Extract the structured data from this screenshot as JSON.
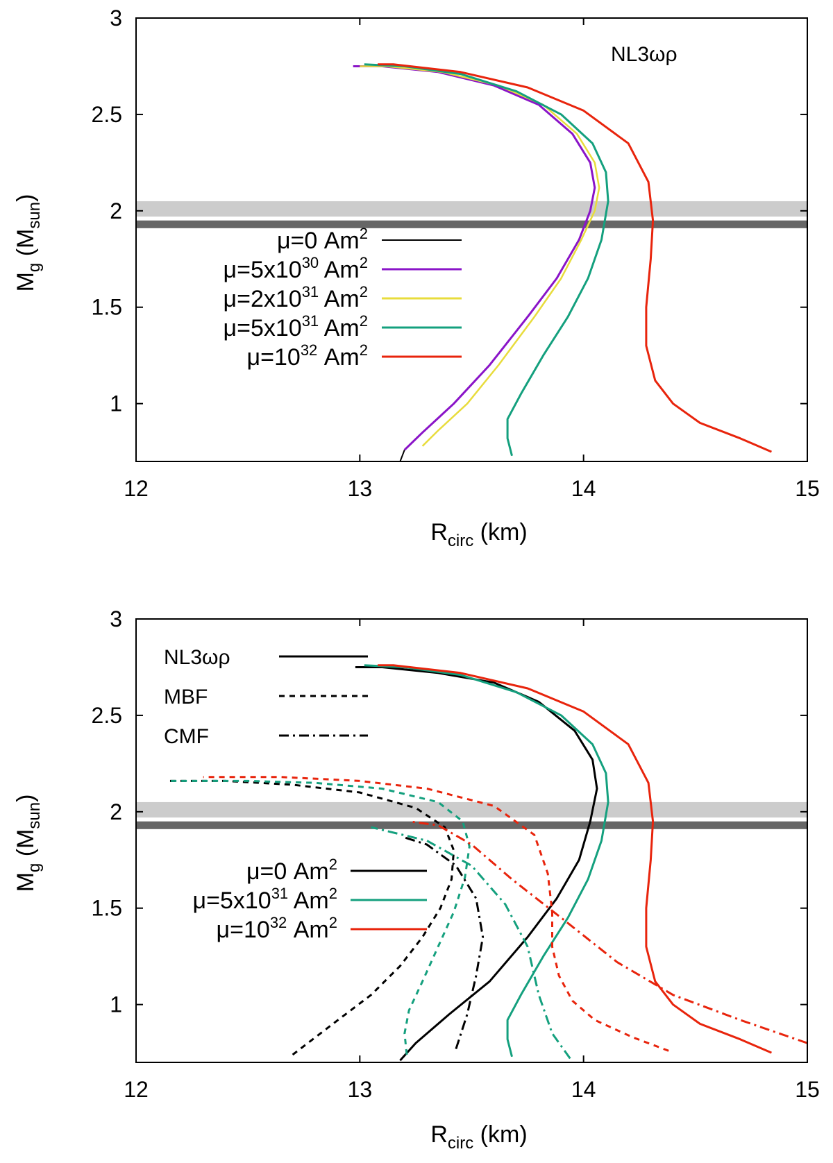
{
  "chart_data": [
    {
      "type": "line",
      "panel": "top",
      "title": "",
      "xlabel_main": "R",
      "xlabel_sub": "circ",
      "xlabel_tail": " (km)",
      "ylabel_main": "M",
      "ylabel_sub": "g",
      "ylabel_tail": " (M",
      "ylabel_sub2": "sun",
      "ylabel_end": ")",
      "xlim": [
        12,
        15
      ],
      "ylim": [
        0.7,
        3
      ],
      "xticks": [
        "12",
        "13",
        "14",
        "15"
      ],
      "yticks": [
        "1",
        "1.5",
        "2",
        "2.5",
        "3"
      ],
      "grid": false,
      "annotation": "NL3ωρ",
      "bands": [
        {
          "y": [
            1.97,
            2.05
          ],
          "color": "#cccccc"
        },
        {
          "y": [
            1.91,
            1.95
          ],
          "color": "#666666"
        }
      ],
      "legend": [
        {
          "text": "μ=0 Am",
          "sup": "2",
          "suffix": "",
          "color": "#000000",
          "dash": "solid"
        },
        {
          "text": "μ=5x10",
          "sup": "30",
          "suffix": " Am²",
          "color": "#8a14c8",
          "dash": "solid"
        },
        {
          "text": "μ=2x10",
          "sup": "31",
          "suffix": " Am²",
          "color": "#e8dc3c",
          "dash": "solid"
        },
        {
          "text": "μ=5x10",
          "sup": "31",
          "suffix": " Am²",
          "color": "#14a07e",
          "dash": "solid"
        },
        {
          "text": "μ=10",
          "sup": "32",
          "suffix": " Am²",
          "color": "#e8240c",
          "dash": "solid"
        }
      ],
      "series": [
        {
          "name": "μ=0 Am²",
          "color": "#000000",
          "width": 2,
          "dash": "solid",
          "x": [
            13.18,
            13.2
          ],
          "y": [
            0.7,
            0.76
          ]
        },
        {
          "name": "μ=5x10^30 Am²",
          "color": "#8a14c8",
          "width": 3,
          "dash": "solid",
          "x": [
            13.2,
            13.28,
            13.42,
            13.58,
            13.75,
            13.88,
            13.98,
            14.03,
            14.05,
            14.03,
            13.95,
            13.8,
            13.6,
            13.35,
            13.1,
            12.97
          ],
          "y": [
            0.76,
            0.85,
            1.0,
            1.2,
            1.45,
            1.65,
            1.85,
            2.0,
            2.12,
            2.25,
            2.4,
            2.55,
            2.65,
            2.72,
            2.75,
            2.75
          ]
        },
        {
          "name": "μ=2x10^31 Am²",
          "color": "#e8dc3c",
          "width": 2.5,
          "dash": "solid",
          "x": [
            13.28,
            13.35,
            13.48,
            13.62,
            13.78,
            13.9,
            13.99,
            14.05,
            14.07,
            14.05,
            13.97,
            13.82,
            13.62,
            13.37,
            13.12,
            13.0
          ],
          "y": [
            0.78,
            0.86,
            1.0,
            1.2,
            1.45,
            1.65,
            1.85,
            2.0,
            2.12,
            2.25,
            2.4,
            2.55,
            2.65,
            2.72,
            2.75,
            2.75
          ]
        },
        {
          "name": "μ=5x10^31 Am²",
          "color": "#14a07e",
          "width": 3,
          "dash": "solid",
          "x": [
            13.68,
            13.66,
            13.66,
            13.72,
            13.82,
            13.93,
            14.02,
            14.08,
            14.11,
            14.1,
            14.04,
            13.9,
            13.7,
            13.45,
            13.2,
            13.02
          ],
          "y": [
            0.73,
            0.82,
            0.92,
            1.05,
            1.25,
            1.45,
            1.65,
            1.85,
            2.05,
            2.2,
            2.35,
            2.5,
            2.62,
            2.71,
            2.75,
            2.76
          ]
        },
        {
          "name": "μ=10^32 Am²",
          "color": "#e8240c",
          "width": 3,
          "dash": "solid",
          "x": [
            14.84,
            14.7,
            14.52,
            14.4,
            14.32,
            14.28,
            14.28,
            14.3,
            14.31,
            14.29,
            14.2,
            14.0,
            13.75,
            13.45,
            13.15,
            13.08
          ],
          "y": [
            0.75,
            0.82,
            0.9,
            1.0,
            1.12,
            1.3,
            1.5,
            1.75,
            1.95,
            2.15,
            2.35,
            2.52,
            2.64,
            2.72,
            2.76,
            2.76
          ]
        }
      ]
    },
    {
      "type": "line",
      "panel": "bottom",
      "title": "",
      "xlabel_main": "R",
      "xlabel_sub": "circ",
      "xlabel_tail": " (km)",
      "ylabel_main": "M",
      "ylabel_sub": "g",
      "ylabel_tail": " (M",
      "ylabel_sub2": "sun",
      "ylabel_end": ")",
      "xlim": [
        12,
        15
      ],
      "ylim": [
        0.7,
        3
      ],
      "xticks": [
        "12",
        "13",
        "14",
        "15"
      ],
      "yticks": [
        "1",
        "1.5",
        "2",
        "2.5",
        "3"
      ],
      "grid": false,
      "bands": [
        {
          "y": [
            1.97,
            2.05
          ],
          "color": "#cccccc"
        },
        {
          "y": [
            1.91,
            1.95
          ],
          "color": "#666666"
        }
      ],
      "legend_styles": [
        {
          "text": "NL3ωρ",
          "color": "#000000",
          "dash": "solid"
        },
        {
          "text": "MBF",
          "color": "#000000",
          "dash": "dashed"
        },
        {
          "text": "CMF",
          "color": "#000000",
          "dash": "dashdot"
        }
      ],
      "legend": [
        {
          "text": "μ=0 Am",
          "sup": "2",
          "suffix": "",
          "color": "#000000",
          "dash": "solid"
        },
        {
          "text": "μ=5x10",
          "sup": "31",
          "suffix": " Am²",
          "color": "#14a07e",
          "dash": "solid"
        },
        {
          "text": "μ=10",
          "sup": "32",
          "suffix": " Am²",
          "color": "#e8240c",
          "dash": "solid"
        }
      ],
      "series": [
        {
          "name": "NL3ωρ μ=0",
          "color": "#000000",
          "width": 3,
          "dash": "solid",
          "x": [
            13.18,
            13.25,
            13.4,
            13.58,
            13.75,
            13.88,
            13.98,
            14.03,
            14.06,
            14.04,
            13.96,
            13.8,
            13.6,
            13.35,
            13.1,
            12.98
          ],
          "y": [
            0.71,
            0.8,
            0.95,
            1.12,
            1.35,
            1.55,
            1.75,
            1.95,
            2.12,
            2.27,
            2.42,
            2.57,
            2.67,
            2.72,
            2.75,
            2.75
          ]
        },
        {
          "name": "NL3ωρ μ=5x10^31",
          "color": "#14a07e",
          "width": 3,
          "dash": "solid",
          "x": [
            13.68,
            13.66,
            13.66,
            13.72,
            13.82,
            13.93,
            14.02,
            14.08,
            14.11,
            14.1,
            14.04,
            13.9,
            13.7,
            13.45,
            13.2,
            13.02
          ],
          "y": [
            0.73,
            0.82,
            0.92,
            1.05,
            1.25,
            1.45,
            1.65,
            1.85,
            2.05,
            2.2,
            2.35,
            2.5,
            2.62,
            2.71,
            2.75,
            2.76
          ]
        },
        {
          "name": "NL3ωρ μ=10^32",
          "color": "#e8240c",
          "width": 3,
          "dash": "solid",
          "x": [
            14.84,
            14.7,
            14.52,
            14.4,
            14.32,
            14.28,
            14.28,
            14.3,
            14.31,
            14.29,
            14.2,
            14.0,
            13.75,
            13.45,
            13.15,
            13.08
          ],
          "y": [
            0.75,
            0.82,
            0.9,
            1.0,
            1.12,
            1.3,
            1.5,
            1.75,
            1.95,
            2.15,
            2.35,
            2.52,
            2.64,
            2.72,
            2.76,
            2.76
          ]
        },
        {
          "name": "MBF μ=0",
          "color": "#000000",
          "width": 3,
          "dash": "dashed",
          "x": [
            12.7,
            12.88,
            13.05,
            13.18,
            13.28,
            13.36,
            13.41,
            13.42,
            13.38,
            13.25,
            13.0,
            12.7,
            12.4,
            12.15
          ],
          "y": [
            0.74,
            0.9,
            1.05,
            1.2,
            1.35,
            1.5,
            1.65,
            1.8,
            1.92,
            2.02,
            2.1,
            2.14,
            2.16,
            2.16
          ]
        },
        {
          "name": "MBF μ=5x10^31",
          "color": "#14a07e",
          "width": 3,
          "dash": "dashed",
          "x": [
            13.21,
            13.2,
            13.22,
            13.28,
            13.35,
            13.42,
            13.47,
            13.49,
            13.46,
            13.35,
            13.1,
            12.8,
            12.5,
            12.15
          ],
          "y": [
            0.74,
            0.85,
            0.97,
            1.12,
            1.3,
            1.48,
            1.66,
            1.82,
            1.95,
            2.05,
            2.12,
            2.15,
            2.16,
            2.16
          ]
        },
        {
          "name": "MBF μ=10^32",
          "color": "#e8240c",
          "width": 3,
          "dash": "dashed",
          "x": [
            14.38,
            14.22,
            14.05,
            13.95,
            13.89,
            13.86,
            13.86,
            13.84,
            13.78,
            13.6,
            13.3,
            13.0,
            12.65,
            12.3
          ],
          "y": [
            0.76,
            0.83,
            0.92,
            1.02,
            1.15,
            1.3,
            1.48,
            1.68,
            1.88,
            2.03,
            2.12,
            2.16,
            2.18,
            2.18
          ]
        },
        {
          "name": "CMF μ=0",
          "color": "#000000",
          "width": 3,
          "dash": "dashdot",
          "x": [
            13.43,
            13.48,
            13.52,
            13.55,
            13.52,
            13.43,
            13.3,
            13.19
          ],
          "y": [
            0.77,
            0.95,
            1.15,
            1.35,
            1.55,
            1.72,
            1.83,
            1.87
          ]
        },
        {
          "name": "CMF μ=5x10^31",
          "color": "#14a07e",
          "width": 3,
          "dash": "dashdot",
          "x": [
            13.94,
            13.86,
            13.8,
            13.75,
            13.65,
            13.5,
            13.3,
            13.05
          ],
          "y": [
            0.72,
            0.85,
            1.05,
            1.3,
            1.52,
            1.72,
            1.85,
            1.92
          ]
        },
        {
          "name": "CMF μ=10^32",
          "color": "#e8240c",
          "width": 3,
          "dash": "dashdot",
          "x": [
            15.0,
            14.7,
            14.4,
            14.15,
            13.9,
            13.68,
            13.5,
            13.35,
            13.22
          ],
          "y": [
            0.8,
            0.92,
            1.05,
            1.22,
            1.45,
            1.65,
            1.83,
            1.93,
            1.95
          ]
        }
      ]
    }
  ]
}
